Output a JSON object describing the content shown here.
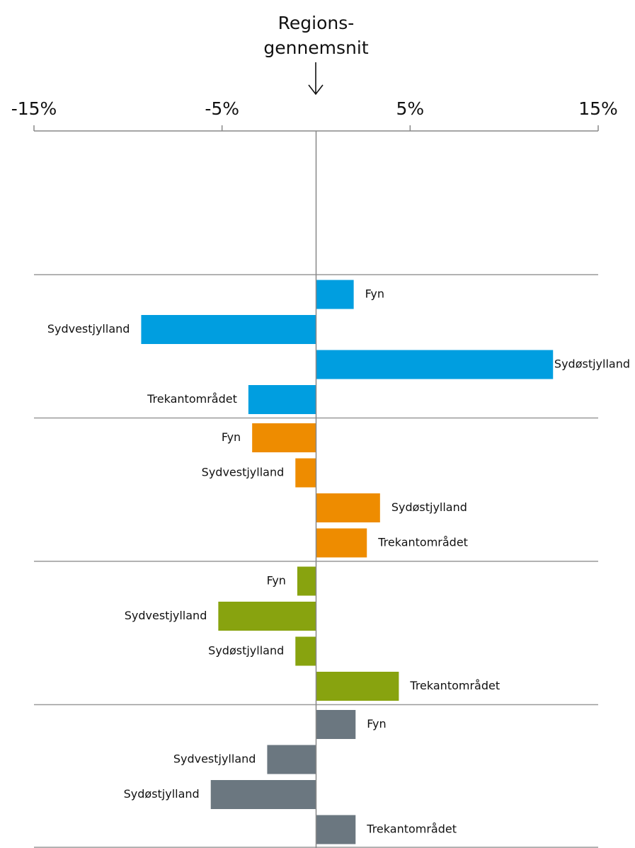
{
  "chart_data": {
    "type": "bar",
    "orientation": "horizontal",
    "annotation": [
      "Regions-",
      "gennemsnit"
    ],
    "categories": [
      "Fyn",
      "Sydvestjylland",
      "Sydøstjylland",
      "Trekantområdet"
    ],
    "series": [
      {
        "color": "#009ee0",
        "values": [
          2.0,
          -9.3,
          12.6,
          -3.6
        ]
      },
      {
        "color": "#ee8c00",
        "values": [
          -3.4,
          -1.1,
          3.4,
          2.7
        ]
      },
      {
        "color": "#88a30f",
        "values": [
          -1.0,
          -5.2,
          -1.1,
          4.4
        ]
      },
      {
        "color": "#6b7780",
        "values": [
          2.1,
          -2.6,
          -5.6,
          2.1
        ]
      }
    ],
    "xlim": [
      -15,
      15
    ],
    "xticks": [
      {
        "value": -15,
        "label": "-15%"
      },
      {
        "value": -5,
        "label": "-5%"
      },
      {
        "value": 5,
        "label": "5%"
      },
      {
        "value": 15,
        "label": "15%"
      }
    ]
  }
}
